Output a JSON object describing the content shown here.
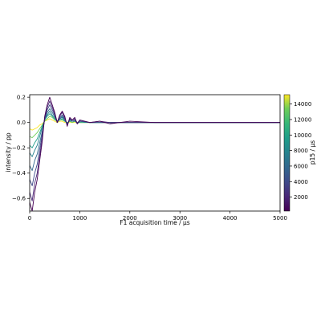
{
  "chart_data": {
    "type": "line",
    "title": "",
    "xlabel": "F1 acquisition time / μs",
    "ylabel": "intensity / pp",
    "xlim": [
      0,
      5000
    ],
    "ylim": [
      -0.7,
      0.22
    ],
    "xticks": [
      0,
      1000,
      2000,
      3000,
      4000,
      5000
    ],
    "xtick_labels": [
      "0",
      "1000",
      "2000",
      "3000",
      "4000",
      "5000"
    ],
    "yticks": [
      -0.6,
      -0.4,
      -0.2,
      0.0,
      0.2
    ],
    "ytick_labels": [
      "−0.6",
      "−0.4",
      "−0.2",
      "0.0",
      "0.2"
    ],
    "grid": false,
    "colormap": "viridis",
    "colorbar": {
      "label": "p15 / μs",
      "range": [
        200,
        15200
      ],
      "ticks": [
        2000,
        4000,
        6000,
        8000,
        10000,
        12000,
        14000
      ],
      "tick_labels": [
        "2000",
        "4000",
        "6000",
        "8000",
        "10000",
        "12000",
        "14000"
      ]
    },
    "series": [
      {
        "p15": 200,
        "color": "#440154",
        "x": [
          0,
          50,
          100,
          150,
          200,
          250,
          300,
          350,
          400,
          450,
          500,
          550,
          600,
          650,
          700,
          750,
          800,
          850,
          900,
          950,
          1000,
          1200,
          1400,
          1600,
          2000,
          2500,
          3000,
          4000,
          5000
        ],
        "y": [
          -0.63,
          -0.7,
          -0.55,
          -0.45,
          -0.3,
          -0.15,
          0.05,
          0.14,
          0.2,
          0.14,
          0.08,
          0.0,
          0.06,
          0.09,
          0.05,
          -0.03,
          0.04,
          0.02,
          0.04,
          -0.01,
          0.02,
          0.0,
          0.01,
          -0.01,
          0.01,
          0.0,
          0.0,
          0.0,
          0.0
        ]
      },
      {
        "p15": 2000,
        "color": "#482878",
        "x": [
          0,
          50,
          100,
          150,
          200,
          250,
          300,
          350,
          400,
          450,
          500,
          550,
          600,
          650,
          700,
          750,
          800,
          850,
          900,
          950,
          1000,
          1200,
          1400,
          1600,
          2000,
          2500,
          3000,
          4000,
          5000
        ],
        "y": [
          -0.55,
          -0.62,
          -0.48,
          -0.4,
          -0.26,
          -0.12,
          0.04,
          0.12,
          0.17,
          0.12,
          0.07,
          0.0,
          0.05,
          0.08,
          0.04,
          -0.02,
          0.03,
          0.02,
          0.03,
          -0.01,
          0.02,
          0.0,
          0.01,
          0.0,
          0.0,
          0.0,
          0.0,
          0.0,
          0.0
        ]
      },
      {
        "p15": 4000,
        "color": "#3e4989",
        "x": [
          0,
          50,
          100,
          150,
          200,
          250,
          300,
          350,
          400,
          450,
          500,
          550,
          600,
          650,
          700,
          750,
          800,
          850,
          900,
          950,
          1000,
          1200,
          1400,
          1600,
          2000,
          2500,
          3000,
          4000,
          5000
        ],
        "y": [
          -0.45,
          -0.5,
          -0.4,
          -0.33,
          -0.21,
          -0.09,
          0.03,
          0.1,
          0.14,
          0.1,
          0.06,
          0.0,
          0.04,
          0.06,
          0.03,
          -0.02,
          0.03,
          0.01,
          0.02,
          -0.01,
          0.01,
          0.0,
          0.0,
          0.0,
          0.0,
          0.0,
          0.0,
          0.0,
          0.0
        ]
      },
      {
        "p15": 6000,
        "color": "#31688e",
        "x": [
          0,
          50,
          100,
          150,
          200,
          250,
          300,
          350,
          400,
          450,
          500,
          550,
          600,
          650,
          700,
          750,
          800,
          850,
          900,
          950,
          1000,
          1200,
          1400,
          1600,
          2000,
          2500,
          3000,
          4000,
          5000
        ],
        "y": [
          -0.34,
          -0.38,
          -0.3,
          -0.25,
          -0.16,
          -0.07,
          0.02,
          0.08,
          0.11,
          0.08,
          0.05,
          0.0,
          0.03,
          0.05,
          0.02,
          -0.01,
          0.02,
          0.01,
          0.02,
          0.0,
          0.01,
          0.0,
          0.0,
          0.0,
          0.0,
          0.0,
          0.0,
          0.0,
          0.0
        ]
      },
      {
        "p15": 8000,
        "color": "#26828e",
        "x": [
          0,
          50,
          100,
          150,
          200,
          250,
          300,
          350,
          400,
          450,
          500,
          550,
          600,
          650,
          700,
          750,
          800,
          850,
          900,
          950,
          1000,
          1200,
          1400,
          1600,
          2000,
          2500,
          3000,
          4000,
          5000
        ],
        "y": [
          -0.24,
          -0.27,
          -0.22,
          -0.18,
          -0.11,
          -0.04,
          0.02,
          0.06,
          0.09,
          0.06,
          0.04,
          0.01,
          0.03,
          0.04,
          0.02,
          -0.01,
          0.02,
          0.01,
          0.01,
          0.0,
          0.01,
          0.0,
          0.0,
          0.0,
          0.0,
          0.0,
          0.0,
          0.0,
          0.0
        ]
      },
      {
        "p15": 10000,
        "color": "#1f9e89",
        "x": [
          0,
          50,
          100,
          150,
          200,
          250,
          300,
          350,
          400,
          450,
          500,
          550,
          600,
          650,
          700,
          750,
          800,
          850,
          900,
          950,
          1000,
          1200,
          1400,
          1600,
          2000,
          2500,
          3000,
          4000,
          5000
        ],
        "y": [
          -0.18,
          -0.2,
          -0.16,
          -0.13,
          -0.08,
          -0.03,
          0.02,
          0.05,
          0.07,
          0.05,
          0.03,
          0.01,
          0.02,
          0.03,
          0.01,
          0.0,
          0.01,
          0.01,
          0.01,
          0.0,
          0.0,
          0.0,
          0.0,
          0.0,
          0.0,
          0.0,
          0.0,
          0.0,
          0.0
        ]
      },
      {
        "p15": 12000,
        "color": "#6ece58",
        "x": [
          0,
          50,
          100,
          150,
          200,
          250,
          300,
          350,
          400,
          450,
          500,
          550,
          600,
          650,
          700,
          750,
          800,
          850,
          900,
          950,
          1000,
          1200,
          1400,
          1600,
          2000,
          2500,
          3000,
          4000,
          5000
        ],
        "y": [
          -0.11,
          -0.12,
          -0.1,
          -0.08,
          -0.05,
          -0.02,
          0.01,
          0.03,
          0.05,
          0.04,
          0.02,
          0.01,
          0.02,
          0.02,
          0.01,
          0.0,
          0.01,
          0.0,
          0.01,
          0.0,
          0.0,
          0.0,
          0.0,
          0.0,
          0.0,
          0.0,
          0.0,
          0.0,
          0.0
        ]
      },
      {
        "p15": 14000,
        "color": "#fde725",
        "x": [
          0,
          50,
          100,
          150,
          200,
          250,
          300,
          350,
          400,
          450,
          500,
          550,
          600,
          650,
          700,
          750,
          800,
          850,
          900,
          950,
          1000,
          1200,
          1400,
          1600,
          2000,
          2500,
          3000,
          4000,
          5000
        ],
        "y": [
          -0.05,
          -0.06,
          -0.05,
          -0.04,
          -0.02,
          -0.01,
          0.01,
          0.02,
          0.03,
          0.02,
          0.01,
          0.0,
          0.01,
          0.01,
          0.0,
          0.0,
          0.0,
          0.0,
          0.0,
          0.0,
          0.0,
          0.0,
          0.0,
          0.0,
          0.0,
          0.0,
          0.0,
          0.0,
          0.0
        ]
      }
    ]
  }
}
